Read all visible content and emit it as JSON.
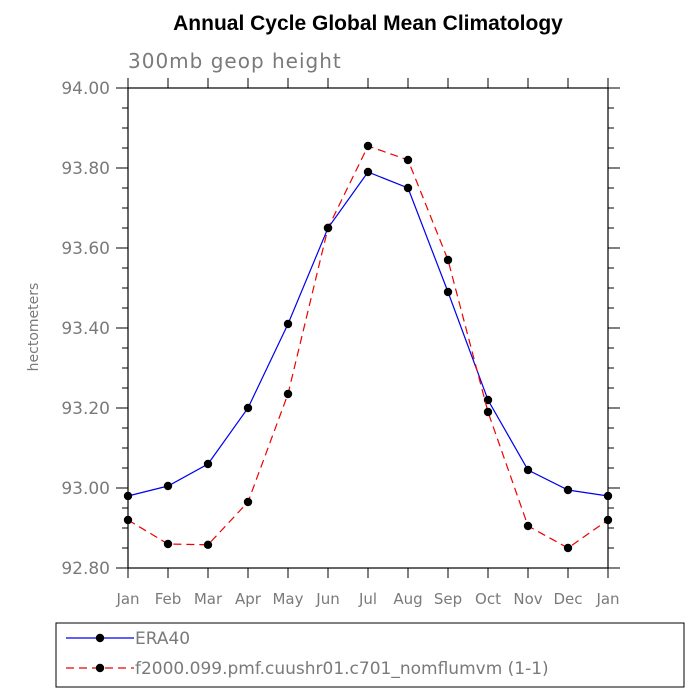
{
  "chart_data": {
    "type": "line",
    "title": "Annual Cycle Global Mean Climatology",
    "subtitle": "300mb geop height",
    "xlabel": "",
    "ylabel": "hectometers",
    "categories": [
      "Jan",
      "Feb",
      "Mar",
      "Apr",
      "May",
      "Jun",
      "Jul",
      "Aug",
      "Sep",
      "Oct",
      "Nov",
      "Dec",
      "Jan"
    ],
    "y_ticks": [
      "92.80",
      "93.00",
      "93.20",
      "93.40",
      "93.60",
      "93.80",
      "94.00"
    ],
    "ylim": [
      92.8,
      94.0
    ],
    "grid": false,
    "legend_position": "bottom",
    "series": [
      {
        "name": "ERA40",
        "color": "#0000ee",
        "dash": "solid",
        "values": [
          92.98,
          93.005,
          93.06,
          93.2,
          93.41,
          93.65,
          93.79,
          93.75,
          93.49,
          93.22,
          93.045,
          92.995,
          92.98
        ]
      },
      {
        "name": "f2000.099.pmf.cuushr01.c701_nomflumvm (1-1)",
        "color": "#ee0000",
        "dash": "dashed",
        "values": [
          92.92,
          92.86,
          92.858,
          92.965,
          93.235,
          93.65,
          93.855,
          93.82,
          93.57,
          93.19,
          92.905,
          92.85,
          92.92
        ]
      }
    ]
  }
}
